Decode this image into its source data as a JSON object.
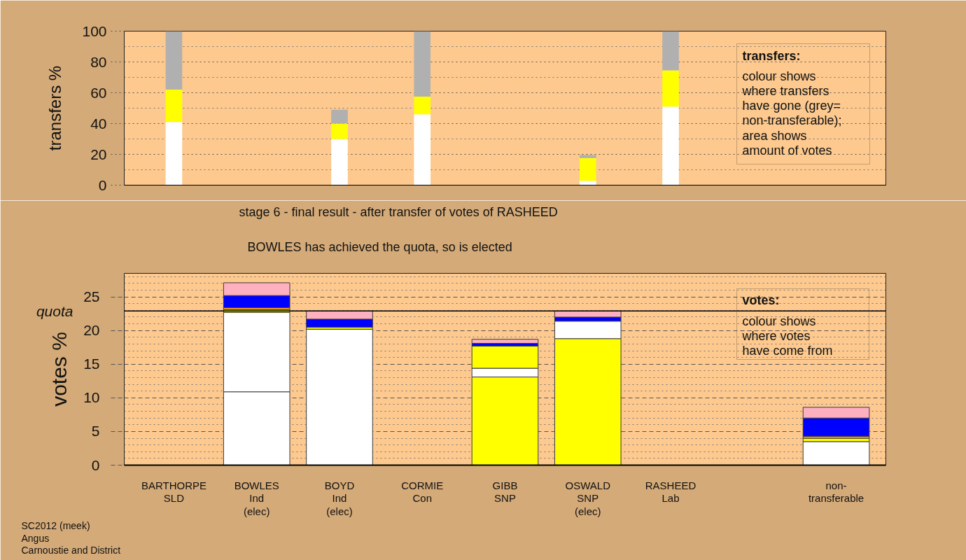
{
  "chart_data": [
    {
      "type": "bar",
      "stacked": true,
      "ylabel": "transfers %",
      "categories": [
        null,
        null,
        null,
        null,
        null,
        null,
        null,
        null,
        null
      ],
      "series": [
        {
          "color": "#ffffff",
          "values": [
            41,
            null,
            30,
            46,
            null,
            2.8,
            51,
            null,
            null
          ]
        },
        {
          "color": "#ffff00",
          "values": [
            21,
            null,
            10,
            11.5,
            null,
            14.8,
            23.5,
            null,
            null
          ]
        },
        {
          "color": "#b0b0b0",
          "values": [
            38,
            null,
            9,
            42.5,
            null,
            1.9,
            25.5,
            null,
            null
          ]
        }
      ],
      "ylim": [
        0,
        100
      ],
      "yticks": [
        0,
        20,
        40,
        60,
        80,
        100
      ],
      "grid": true,
      "tick_labels": "y",
      "annotations": [
        "transfers:",
        "colour shows\nwhere transfers\nhave gone (grey=\nnon-transferable);",
        "area shows\namount of votes"
      ]
    },
    {
      "type": "bar",
      "stacked": true,
      "title": "stage 6 - final result - after transfer of votes of RASHEED",
      "subtitle": "BOWLES has achieved the quota, so is elected",
      "ylabel": "votes %",
      "categories": [
        "BARTHORPE\nSLD",
        "BOWLES\nInd\n(elec)",
        "BOYD\nInd\n(elec)",
        "CORMIE\nCon",
        "GIBB\nSNP",
        "OSWALD\nSNP\n(elec)",
        "RASHEED\nLab",
        null,
        "non-\ntransferable"
      ],
      "series": [
        {
          "values": [
            null,
            10.9,
            20.2,
            null,
            13.1,
            18.8,
            null,
            null,
            3.5
          ],
          "colors": [
            null,
            "#ffffff",
            "#ffffff",
            null,
            "#ffff00",
            "#ffff00",
            null,
            null,
            "#ffffff"
          ]
        },
        {
          "values": [
            null,
            11.8,
            0.3,
            null,
            1.3,
            2.6,
            null,
            null,
            0.5
          ],
          "colors": [
            null,
            "#ffffff",
            "#ffff00",
            null,
            "#ffffff",
            "#ffffff",
            null,
            null,
            "#ffff00"
          ]
        },
        {
          "values": [
            null,
            0.4,
            1.2,
            null,
            3.3,
            0.6,
            null,
            null,
            0.3
          ],
          "colors": [
            null,
            "#ffff00",
            "#0000ff",
            null,
            "#ffff00",
            "#0000ff",
            null,
            null,
            "#ffa020"
          ]
        },
        {
          "values": [
            null,
            0.3,
            1.2,
            null,
            0.4,
            0.9,
            null,
            null,
            2.7
          ],
          "colors": [
            null,
            "#ffa020",
            "#ffb0c0",
            null,
            "#0000ff",
            "#ffb0c0",
            null,
            null,
            "#0000ff"
          ]
        },
        {
          "values": [
            null,
            1.8,
            null,
            null,
            0.6,
            null,
            null,
            null,
            1.6
          ],
          "colors": [
            null,
            "#0000ff",
            null,
            null,
            "#ffb0c0",
            null,
            null,
            null,
            "#ffb0c0"
          ]
        },
        {
          "values": [
            null,
            1.9,
            null,
            null,
            null,
            null,
            null,
            null,
            null
          ],
          "colors": [
            null,
            "#ffb0c0",
            null,
            null,
            null,
            null,
            null,
            null,
            null
          ]
        }
      ],
      "ylim": [
        0,
        28.5
      ],
      "yticks": [
        0,
        5,
        10,
        15,
        20,
        25
      ],
      "grid": true,
      "ref_lines": [
        {
          "axis": "y",
          "value": 22.9,
          "label": "quota",
          "color": "#000000"
        }
      ],
      "annotations": [
        "votes:",
        "colour shows\nwhere votes\nhave come from",
        "SC2012 (meek)\nAngus\nCarnoustie and District"
      ]
    }
  ]
}
